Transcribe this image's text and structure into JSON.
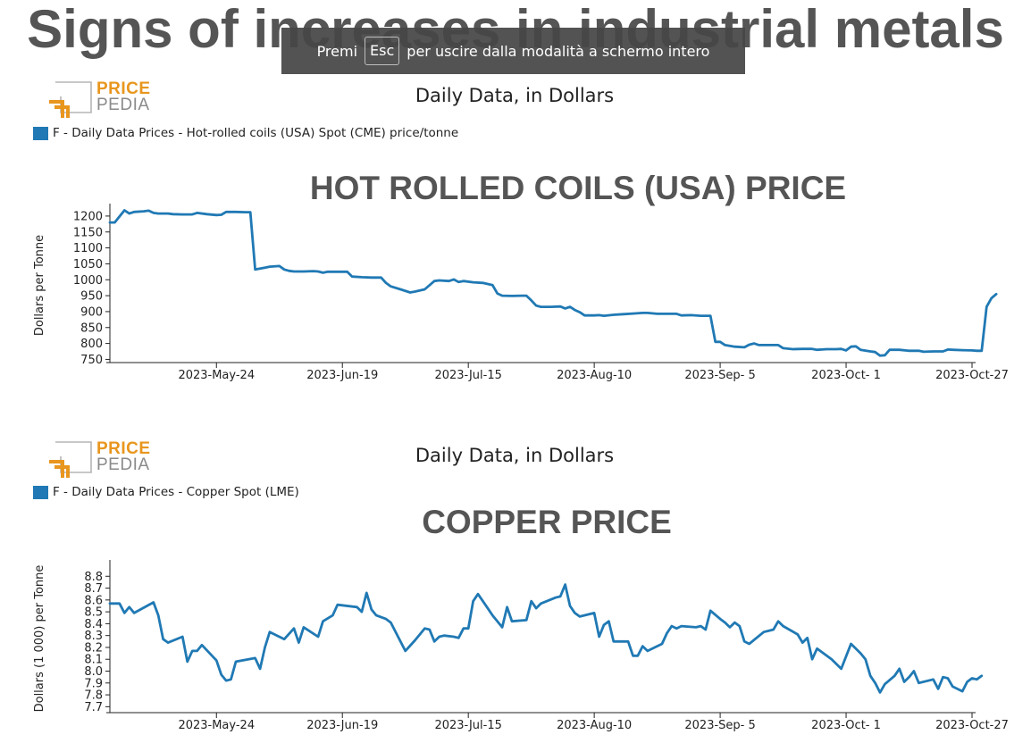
{
  "page": {
    "title": "Signs of increases in industrial metals"
  },
  "fullscreen_notice": {
    "before": "Premi",
    "key": "Esc",
    "after": "per uscire dalla modalità a schermo intero"
  },
  "logo": {
    "word1": "PRICE",
    "word2": "PEDIA"
  },
  "colors": {
    "series": "#2079b4",
    "title_gray": "#555555",
    "logo_orange": "#e8961e"
  },
  "chart_data": [
    {
      "type": "line",
      "title": "HOT ROLLED COILS (USA) PRICE",
      "caption": "Daily Data, in Dollars",
      "legend": "F - Daily Data Prices - Hot-rolled coils (USA) Spot (CME) price/tonne",
      "ylabel": "Dollars per Tonne",
      "ylim": [
        740,
        1225
      ],
      "yticks": [
        750,
        800,
        850,
        900,
        950,
        1000,
        1050,
        1100,
        1150,
        1200
      ],
      "xticks": [
        {
          "label": "2023-May-24",
          "day": 22
        },
        {
          "label": "2023-Jun-19",
          "day": 48
        },
        {
          "label": "2023-Jul-15",
          "day": 74
        },
        {
          "label": "2023-Aug-10",
          "day": 100
        },
        {
          "label": "2023-Sep- 5",
          "day": 126
        },
        {
          "label": "2023-Oct- 1",
          "day": 152
        },
        {
          "label": "2023-Oct-27",
          "day": 178
        }
      ],
      "xdomain": [
        0,
        178
      ],
      "points": [
        [
          0,
          1180
        ],
        [
          1,
          1180
        ],
        [
          3,
          1218
        ],
        [
          4,
          1208
        ],
        [
          5,
          1213
        ],
        [
          7,
          1215
        ],
        [
          8,
          1217
        ],
        [
          9,
          1210
        ],
        [
          10,
          1208
        ],
        [
          12,
          1208
        ],
        [
          13,
          1206
        ],
        [
          15,
          1205
        ],
        [
          17,
          1205
        ],
        [
          18,
          1210
        ],
        [
          20,
          1206
        ],
        [
          22,
          1203
        ],
        [
          23,
          1204
        ],
        [
          24,
          1213
        ],
        [
          26,
          1213
        ],
        [
          28,
          1212
        ],
        [
          29,
          1212
        ],
        [
          30,
          1032
        ],
        [
          31,
          1035
        ],
        [
          32,
          1038
        ],
        [
          33,
          1041
        ],
        [
          35,
          1043
        ],
        [
          36,
          1032
        ],
        [
          37,
          1028
        ],
        [
          38,
          1026
        ],
        [
          40,
          1026
        ],
        [
          42,
          1027
        ],
        [
          43,
          1026
        ],
        [
          44,
          1022
        ],
        [
          45,
          1025
        ],
        [
          47,
          1025
        ],
        [
          49,
          1025
        ],
        [
          50,
          1010
        ],
        [
          52,
          1008
        ],
        [
          54,
          1007
        ],
        [
          56,
          1007
        ],
        [
          57,
          990
        ],
        [
          58,
          979
        ],
        [
          60,
          970
        ],
        [
          62,
          960
        ],
        [
          63,
          963
        ],
        [
          65,
          970
        ],
        [
          67,
          996
        ],
        [
          68,
          998
        ],
        [
          70,
          996
        ],
        [
          71,
          1001
        ],
        [
          72,
          993
        ],
        [
          73,
          996
        ],
        [
          75,
          992
        ],
        [
          77,
          990
        ],
        [
          79,
          983
        ],
        [
          80,
          957
        ],
        [
          81,
          950
        ],
        [
          83,
          949
        ],
        [
          85,
          950
        ],
        [
          86,
          950
        ],
        [
          87,
          935
        ],
        [
          88,
          919
        ],
        [
          89,
          915
        ],
        [
          91,
          915
        ],
        [
          93,
          916
        ],
        [
          94,
          910
        ],
        [
          95,
          915
        ],
        [
          96,
          905
        ],
        [
          97,
          898
        ],
        [
          98,
          888
        ],
        [
          100,
          888
        ],
        [
          101,
          889
        ],
        [
          102,
          887
        ],
        [
          104,
          890
        ],
        [
          106,
          892
        ],
        [
          108,
          894
        ],
        [
          110,
          896
        ],
        [
          111,
          896
        ],
        [
          113,
          893
        ],
        [
          115,
          893
        ],
        [
          117,
          893
        ],
        [
          118,
          888
        ],
        [
          120,
          889
        ],
        [
          122,
          887
        ],
        [
          124,
          887
        ],
        [
          125,
          805
        ],
        [
          126,
          805
        ],
        [
          127,
          795
        ],
        [
          129,
          790
        ],
        [
          131,
          788
        ],
        [
          132,
          796
        ],
        [
          133,
          800
        ],
        [
          134,
          795
        ],
        [
          136,
          795
        ],
        [
          137,
          795
        ],
        [
          138,
          795
        ],
        [
          139,
          785
        ],
        [
          141,
          782
        ],
        [
          143,
          783
        ],
        [
          145,
          783
        ],
        [
          146,
          780
        ],
        [
          148,
          782
        ],
        [
          150,
          782
        ],
        [
          151,
          783
        ],
        [
          152,
          778
        ],
        [
          153,
          790
        ],
        [
          154,
          791
        ],
        [
          155,
          780
        ],
        [
          157,
          775
        ],
        [
          158,
          773
        ],
        [
          159,
          762
        ],
        [
          160,
          763
        ],
        [
          161,
          780
        ],
        [
          163,
          780
        ],
        [
          165,
          777
        ],
        [
          167,
          777
        ],
        [
          168,
          774
        ],
        [
          170,
          775
        ],
        [
          172,
          775
        ],
        [
          173,
          781
        ],
        [
          174,
          780
        ],
        [
          176,
          779
        ],
        [
          178,
          778
        ],
        [
          179,
          777
        ],
        [
          180,
          777
        ],
        [
          181,
          915
        ],
        [
          182,
          942
        ],
        [
          183,
          955
        ]
      ]
    },
    {
      "type": "line",
      "title": "COPPER PRICE",
      "caption": "Daily Data, in Dollars",
      "legend": "F - Daily Data Prices - Copper Spot (LME)",
      "ylabel": "Dollars (1 000) per Tonne",
      "ylim": [
        7.65,
        8.9
      ],
      "yticks": [
        "7.7",
        "7.8",
        "7.9",
        "8.0",
        "8.1",
        "8.2",
        "8.3",
        "8.4",
        "8.5",
        "8.6",
        "8.7",
        "8.8"
      ],
      "xticks": [
        {
          "label": "2023-May-24",
          "day": 22
        },
        {
          "label": "2023-Jun-19",
          "day": 48
        },
        {
          "label": "2023-Jul-15",
          "day": 74
        },
        {
          "label": "2023-Aug-10",
          "day": 100
        },
        {
          "label": "2023-Sep- 5",
          "day": 126
        },
        {
          "label": "2023-Oct- 1",
          "day": 152
        },
        {
          "label": "2023-Oct-27",
          "day": 178
        }
      ],
      "xdomain": [
        0,
        178
      ],
      "points": [
        [
          0,
          8.57
        ],
        [
          1,
          8.57
        ],
        [
          2,
          8.57
        ],
        [
          3,
          8.49
        ],
        [
          4,
          8.54
        ],
        [
          5,
          8.49
        ],
        [
          9,
          8.58
        ],
        [
          10,
          8.47
        ],
        [
          11,
          8.27
        ],
        [
          12,
          8.24
        ],
        [
          15,
          8.29
        ],
        [
          16,
          8.08
        ],
        [
          17,
          8.17
        ],
        [
          18,
          8.17
        ],
        [
          19,
          8.22
        ],
        [
          22,
          8.09
        ],
        [
          23,
          7.97
        ],
        [
          24,
          7.92
        ],
        [
          25,
          7.93
        ],
        [
          26,
          8.08
        ],
        [
          30,
          8.11
        ],
        [
          31,
          8.02
        ],
        [
          32,
          8.2
        ],
        [
          33,
          8.33
        ],
        [
          36,
          8.27
        ],
        [
          38,
          8.36
        ],
        [
          39,
          8.24
        ],
        [
          40,
          8.37
        ],
        [
          43,
          8.29
        ],
        [
          44,
          8.42
        ],
        [
          46,
          8.47
        ],
        [
          47,
          8.56
        ],
        [
          51,
          8.54
        ],
        [
          52,
          8.5
        ],
        [
          53,
          8.66
        ],
        [
          54,
          8.52
        ],
        [
          55,
          8.47
        ],
        [
          57,
          8.44
        ],
        [
          58,
          8.41
        ],
        [
          61,
          8.17
        ],
        [
          63,
          8.26
        ],
        [
          65,
          8.36
        ],
        [
          66,
          8.35
        ],
        [
          67,
          8.25
        ],
        [
          68,
          8.29
        ],
        [
          69,
          8.3
        ],
        [
          71,
          8.29
        ],
        [
          72,
          8.28
        ],
        [
          73,
          8.36
        ],
        [
          74,
          8.36
        ],
        [
          75,
          8.59
        ],
        [
          76,
          8.65
        ],
        [
          78,
          8.53
        ],
        [
          79,
          8.47
        ],
        [
          81,
          8.37
        ],
        [
          82,
          8.54
        ],
        [
          83,
          8.42
        ],
        [
          86,
          8.43
        ],
        [
          87,
          8.59
        ],
        [
          88,
          8.53
        ],
        [
          89,
          8.57
        ],
        [
          92,
          8.62
        ],
        [
          93,
          8.63
        ],
        [
          94,
          8.73
        ],
        [
          95,
          8.55
        ],
        [
          96,
          8.49
        ],
        [
          97,
          8.46
        ],
        [
          100,
          8.49
        ],
        [
          101,
          8.29
        ],
        [
          102,
          8.39
        ],
        [
          103,
          8.42
        ],
        [
          104,
          8.25
        ],
        [
          107,
          8.25
        ],
        [
          108,
          8.13
        ],
        [
          109,
          8.13
        ],
        [
          110,
          8.21
        ],
        [
          111,
          8.17
        ],
        [
          114,
          8.23
        ],
        [
          115,
          8.32
        ],
        [
          116,
          8.38
        ],
        [
          117,
          8.36
        ],
        [
          118,
          8.38
        ],
        [
          121,
          8.37
        ],
        [
          122,
          8.38
        ],
        [
          123,
          8.35
        ],
        [
          124,
          8.51
        ],
        [
          126,
          8.44
        ],
        [
          127,
          8.41
        ],
        [
          128,
          8.37
        ],
        [
          129,
          8.41
        ],
        [
          130,
          8.38
        ],
        [
          131,
          8.25
        ],
        [
          132,
          8.23
        ],
        [
          135,
          8.33
        ],
        [
          136,
          8.34
        ],
        [
          137,
          8.35
        ],
        [
          138,
          8.42
        ],
        [
          139,
          8.38
        ],
        [
          142,
          8.31
        ],
        [
          143,
          8.24
        ],
        [
          144,
          8.28
        ],
        [
          145,
          8.1
        ],
        [
          146,
          8.19
        ],
        [
          149,
          8.1
        ],
        [
          151,
          8.02
        ],
        [
          153,
          8.23
        ],
        [
          154,
          8.19
        ],
        [
          155,
          8.15
        ],
        [
          156,
          8.1
        ],
        [
          157,
          7.96
        ],
        [
          158,
          7.9
        ],
        [
          159,
          7.82
        ],
        [
          160,
          7.89
        ],
        [
          162,
          7.96
        ],
        [
          163,
          8.02
        ],
        [
          164,
          7.91
        ],
        [
          165,
          7.95
        ],
        [
          166,
          8.0
        ],
        [
          167,
          7.9
        ],
        [
          170,
          7.93
        ],
        [
          171,
          7.85
        ],
        [
          172,
          7.95
        ],
        [
          173,
          7.94
        ],
        [
          174,
          7.87
        ],
        [
          176,
          7.83
        ],
        [
          177,
          7.91
        ],
        [
          178,
          7.94
        ],
        [
          179,
          7.93
        ],
        [
          180,
          7.96
        ]
      ]
    }
  ]
}
